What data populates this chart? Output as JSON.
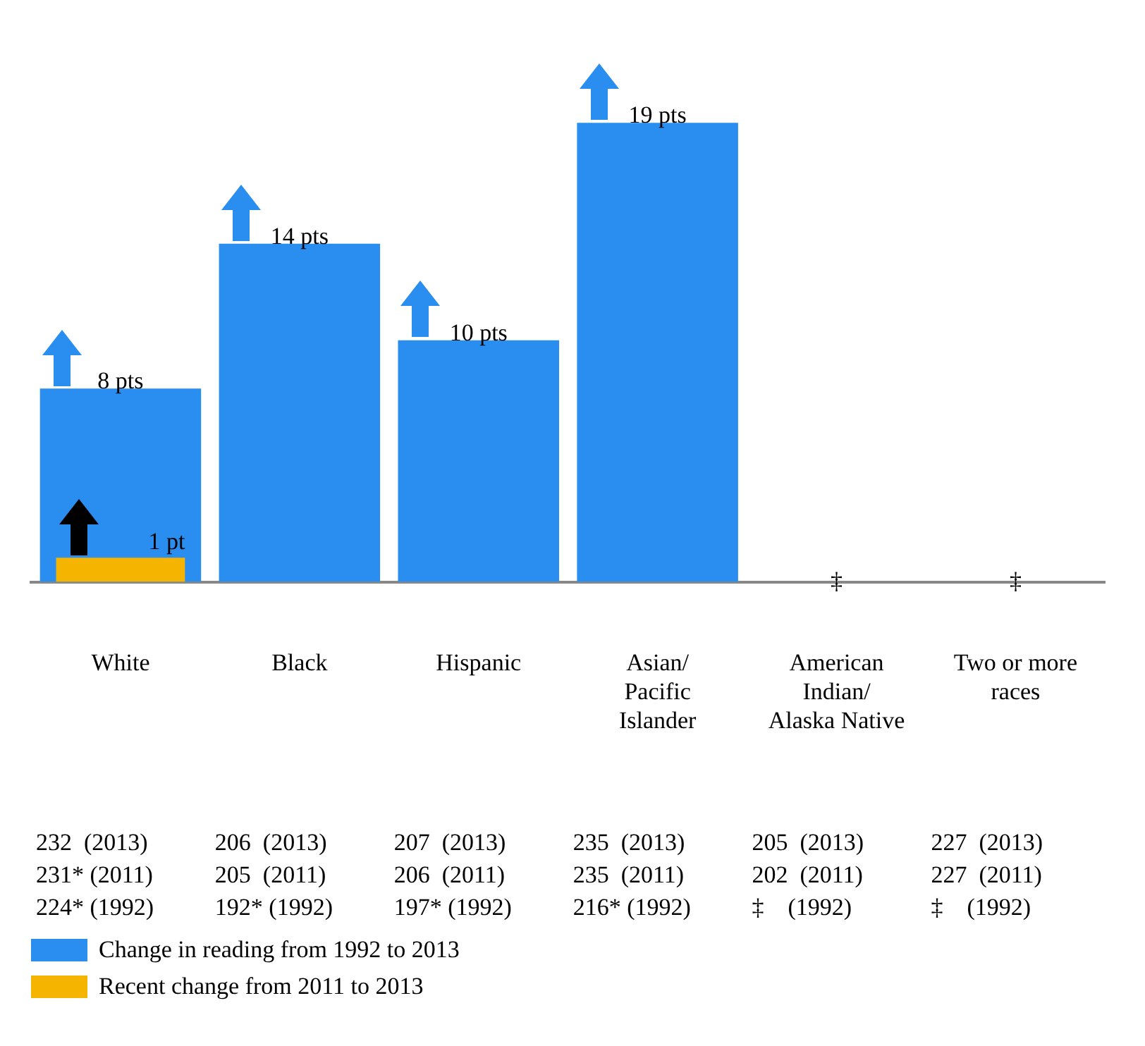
{
  "chart_data": {
    "type": "bar",
    "categories": [
      "White",
      "Black",
      "Hispanic",
      "Asian/ Pacific Islander",
      "American Indian/ Alaska Native",
      "Two or more races"
    ],
    "series": [
      {
        "name": "Change in reading from 1992 to 2013",
        "color": "#2a8ef0",
        "values": [
          8,
          14,
          10,
          19,
          null,
          null
        ],
        "value_labels": [
          "8 pts",
          "14 pts",
          "10 pts",
          "19 pts",
          "‡",
          "‡"
        ]
      },
      {
        "name": "Recent change from 2011 to 2013",
        "color": "#f5b400",
        "values": [
          1,
          null,
          null,
          null,
          null,
          null
        ],
        "value_labels": [
          "1 pt",
          null,
          null,
          null,
          null,
          null
        ]
      }
    ],
    "annotations": [
      "232  (2013)",
      "231* (2011)",
      "224* (1992)",
      "206  (2013)",
      "205  (2011)",
      "192* (1992)",
      "207  (2013)",
      "206  (2011)",
      "197* (1992)",
      "235  (2013)",
      "235  (2011)",
      "216* (1992)",
      "205  (2013)",
      "202  (2011)",
      "‡    (1992)",
      "227  (2013)",
      "227  (2011)",
      "‡    (1992)"
    ],
    "tick_labels": "x",
    "legend": "bottom left",
    "grid": false
  }
}
